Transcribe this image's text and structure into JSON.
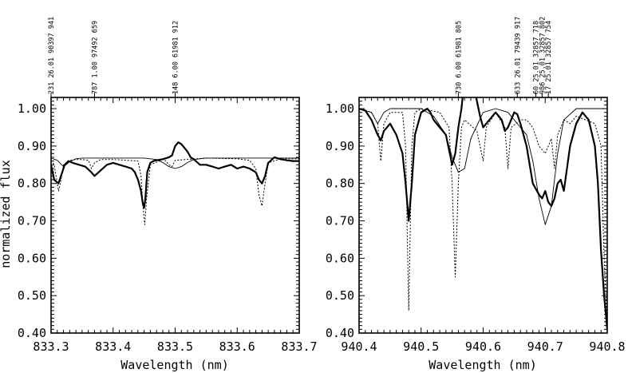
{
  "chart_data": [
    {
      "type": "line",
      "title": "",
      "xlabel": "Wavelength (nm)",
      "ylabel": "normalized flux",
      "xlim": [
        833.3,
        833.7
      ],
      "ylim": [
        0.4,
        1.03
      ],
      "xticks": [
        "833.3",
        "833.4",
        "833.5",
        "833.6",
        "833.7"
      ],
      "yticks": [
        "0.40",
        "0.50",
        "0.60",
        "0.70",
        "0.80",
        "0.90",
        "1.00"
      ],
      "series": [
        {
          "style": "thick",
          "x": [
            833.3,
            833.305,
            833.312,
            833.318,
            833.322,
            833.328,
            833.335,
            833.345,
            833.355,
            833.365,
            833.37,
            833.38,
            833.39,
            833.4,
            833.41,
            833.42,
            833.43,
            833.435,
            833.44,
            833.445,
            833.448,
            833.45,
            833.452,
            833.455,
            833.46,
            833.465,
            833.47,
            833.48,
            833.49,
            833.495,
            833.5,
            833.505,
            833.51,
            833.515,
            833.52,
            833.525,
            833.53,
            833.54,
            833.55,
            833.56,
            833.57,
            833.58,
            833.59,
            833.6,
            833.61,
            833.62,
            833.63,
            833.635,
            833.64,
            833.645,
            833.65,
            833.66,
            833.67,
            833.68,
            833.69,
            833.7
          ],
          "y": [
            0.85,
            0.81,
            0.8,
            0.83,
            0.85,
            0.86,
            0.855,
            0.85,
            0.845,
            0.83,
            0.82,
            0.835,
            0.85,
            0.855,
            0.85,
            0.845,
            0.84,
            0.83,
            0.81,
            0.78,
            0.745,
            0.735,
            0.76,
            0.83,
            0.855,
            0.86,
            0.862,
            0.865,
            0.87,
            0.875,
            0.9,
            0.91,
            0.905,
            0.895,
            0.885,
            0.87,
            0.865,
            0.85,
            0.85,
            0.845,
            0.84,
            0.845,
            0.85,
            0.84,
            0.845,
            0.84,
            0.83,
            0.81,
            0.8,
            0.82,
            0.855,
            0.87,
            0.865,
            0.862,
            0.86,
            0.86
          ]
        },
        {
          "style": "thin",
          "x": [
            833.3,
            833.31,
            833.32,
            833.33,
            833.34,
            833.35,
            833.4,
            833.45,
            833.47,
            833.48,
            833.49,
            833.5,
            833.51,
            833.52,
            833.53,
            833.55,
            833.6,
            833.65,
            833.7
          ],
          "y": [
            0.868,
            0.862,
            0.845,
            0.858,
            0.866,
            0.868,
            0.868,
            0.868,
            0.864,
            0.856,
            0.845,
            0.84,
            0.845,
            0.856,
            0.864,
            0.868,
            0.868,
            0.868,
            0.868
          ],
          "_": 0
        },
        {
          "style": "dotted",
          "x": [
            833.3,
            833.305,
            833.31,
            833.312,
            833.315,
            833.32,
            833.33,
            833.34,
            833.35,
            833.36,
            833.362,
            833.365,
            833.37,
            833.38,
            833.4,
            833.44,
            833.445,
            833.448,
            833.451,
            833.454,
            833.46,
            833.48,
            833.485,
            833.49,
            833.495,
            833.5,
            833.55,
            833.6,
            833.62,
            833.63,
            833.635,
            833.64,
            833.645,
            833.65,
            833.67,
            833.7
          ],
          "y": [
            0.862,
            0.85,
            0.8,
            0.78,
            0.8,
            0.85,
            0.862,
            0.864,
            0.864,
            0.862,
            0.855,
            0.84,
            0.855,
            0.864,
            0.864,
            0.86,
            0.82,
            0.74,
            0.69,
            0.76,
            0.85,
            0.864,
            0.86,
            0.85,
            0.845,
            0.862,
            0.868,
            0.866,
            0.862,
            0.84,
            0.77,
            0.74,
            0.8,
            0.855,
            0.866,
            0.866
          ]
        }
      ],
      "line_ids": [
        {
          "x": 833.3,
          "text": "231   26.01  90397 941"
        },
        {
          "x": 833.37,
          "text": "787    1.00  97492 659"
        },
        {
          "x": 833.5,
          "text": "148    6.00  61981 912"
        }
      ]
    },
    {
      "type": "line",
      "title": "",
      "xlabel": "Wavelength (nm)",
      "ylabel": "",
      "xlim": [
        940.4,
        940.8
      ],
      "ylim": [
        0.4,
        1.03
      ],
      "xticks": [
        "940.4",
        "940.5",
        "940.6",
        "940.7",
        "940.8"
      ],
      "yticks": [
        "0.40",
        "0.50",
        "0.60",
        "0.70",
        "0.80",
        "0.90",
        "1.00"
      ],
      "series": [
        {
          "style": "thick",
          "x": [
            940.4,
            940.41,
            940.42,
            940.43,
            940.435,
            940.44,
            940.45,
            940.46,
            940.47,
            940.475,
            940.48,
            940.485,
            940.49,
            940.5,
            940.51,
            940.515,
            940.52,
            940.53,
            940.54,
            940.55,
            940.555,
            940.56,
            940.565,
            940.57,
            940.575,
            940.58,
            940.59,
            940.595,
            940.6,
            940.61,
            940.62,
            940.63,
            940.635,
            940.64,
            940.645,
            940.65,
            940.655,
            940.66,
            940.67,
            940.68,
            940.69,
            940.695,
            940.7,
            940.705,
            940.71,
            940.715,
            940.72,
            940.725,
            940.73,
            940.74,
            940.75,
            940.76,
            940.77,
            940.78,
            940.785,
            940.79,
            940.795,
            940.8
          ],
          "y": [
            1.0,
            0.995,
            0.97,
            0.93,
            0.915,
            0.94,
            0.96,
            0.93,
            0.88,
            0.8,
            0.7,
            0.8,
            0.93,
            0.99,
            1.0,
            0.99,
            0.97,
            0.95,
            0.93,
            0.85,
            0.88,
            0.95,
            1.0,
            1.08,
            1.1,
            1.09,
            1.02,
            0.98,
            0.95,
            0.97,
            0.99,
            0.97,
            0.94,
            0.95,
            0.97,
            0.99,
            0.985,
            0.96,
            0.9,
            0.8,
            0.77,
            0.76,
            0.78,
            0.75,
            0.74,
            0.76,
            0.8,
            0.81,
            0.78,
            0.9,
            0.96,
            0.99,
            0.97,
            0.9,
            0.8,
            0.62,
            0.5,
            0.41
          ]
        },
        {
          "style": "thin",
          "x": [
            940.4,
            940.42,
            940.43,
            940.44,
            940.45,
            940.46,
            940.48,
            940.5,
            940.52,
            940.54,
            940.55,
            940.56,
            940.57,
            940.58,
            940.6,
            940.62,
            940.64,
            940.65,
            940.66,
            940.67,
            940.68,
            940.69,
            940.7,
            940.71,
            940.72,
            940.73,
            940.75,
            940.8
          ],
          "y": [
            1.0,
            0.99,
            0.96,
            0.99,
            1.0,
            1.0,
            1.0,
            1.0,
            0.98,
            0.93,
            0.87,
            0.83,
            0.84,
            0.92,
            0.99,
            1.0,
            0.99,
            0.97,
            0.95,
            0.93,
            0.86,
            0.76,
            0.69,
            0.74,
            0.88,
            0.97,
            1.0,
            1.0
          ]
        },
        {
          "style": "dotted",
          "x": [
            940.4,
            940.42,
            940.43,
            940.435,
            940.44,
            940.45,
            940.47,
            940.475,
            940.48,
            940.485,
            940.49,
            940.5,
            940.53,
            940.545,
            940.55,
            940.555,
            940.56,
            940.565,
            940.57,
            940.59,
            940.6,
            940.605,
            940.62,
            940.635,
            940.64,
            940.645,
            940.66,
            940.67,
            940.68,
            940.69,
            940.7,
            940.71,
            940.715,
            940.72,
            940.73,
            940.74,
            940.75,
            940.78,
            940.79,
            940.795,
            940.8
          ],
          "y": [
            1.0,
            0.99,
            0.96,
            0.86,
            0.96,
            0.99,
            0.99,
            0.9,
            0.46,
            0.9,
            0.99,
            1.0,
            0.99,
            0.95,
            0.8,
            0.55,
            0.8,
            0.95,
            0.97,
            0.94,
            0.86,
            0.95,
            0.99,
            0.95,
            0.84,
            0.95,
            0.97,
            0.97,
            0.95,
            0.9,
            0.88,
            0.92,
            0.84,
            0.93,
            0.97,
            0.96,
            0.98,
            0.96,
            0.9,
            0.6,
            0.42
          ]
        }
      ],
      "line_ids": [
        {
          "x": 940.56,
          "text": "730    6.00  61981 805"
        },
        {
          "x": 940.655,
          "text": "633   26.01  79439 917"
        },
        {
          "x": 940.685,
          "text": "60    25.01  32857 718"
        },
        {
          "x": 940.695,
          "text": "986   25.01  32857 802"
        },
        {
          "x": 940.705,
          "text": "17    25.01  32857 754"
        }
      ]
    }
  ]
}
